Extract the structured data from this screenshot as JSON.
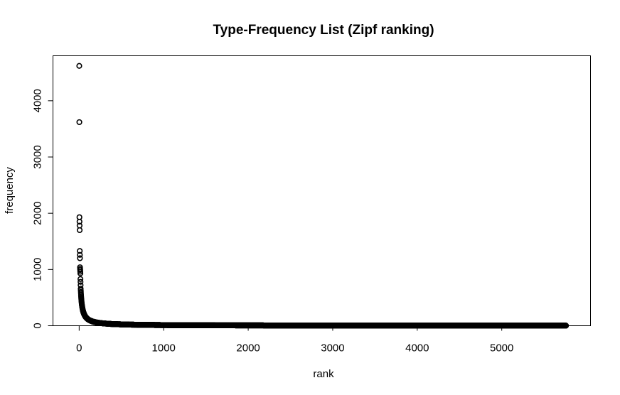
{
  "chart_data": {
    "type": "scatter",
    "title": "Type-Frequency List (Zipf ranking)",
    "xlabel": "rank",
    "ylabel": "frequency",
    "xlim": [
      -310,
      6050
    ],
    "ylim": [
      0,
      4800
    ],
    "x_ticks": [
      0,
      1000,
      2000,
      3000,
      4000,
      5000
    ],
    "y_ticks": [
      0,
      1000,
      2000,
      3000,
      4000
    ],
    "grid": false,
    "legend": "none",
    "color": "#000000",
    "series": [
      {
        "name": "frequency",
        "top_points": [
          [
            1,
            4620
          ],
          [
            2,
            3620
          ],
          [
            3,
            1930
          ],
          [
            4,
            1850
          ],
          [
            5,
            1780
          ],
          [
            6,
            1700
          ],
          [
            7,
            1330
          ],
          [
            8,
            1260
          ],
          [
            9,
            1200
          ],
          [
            10,
            1040
          ],
          [
            11,
            1010
          ],
          [
            12,
            990
          ],
          [
            13,
            960
          ],
          [
            14,
            930
          ],
          [
            15,
            830
          ],
          [
            16,
            780
          ],
          [
            17,
            720
          ],
          [
            18,
            660
          ],
          [
            19,
            630
          ],
          [
            20,
            600
          ]
        ],
        "tail_model": {
          "from_rank": 21,
          "to_rank": 5760,
          "c": 12000,
          "exponent": 1.0,
          "min_value": 1
        }
      }
    ]
  }
}
